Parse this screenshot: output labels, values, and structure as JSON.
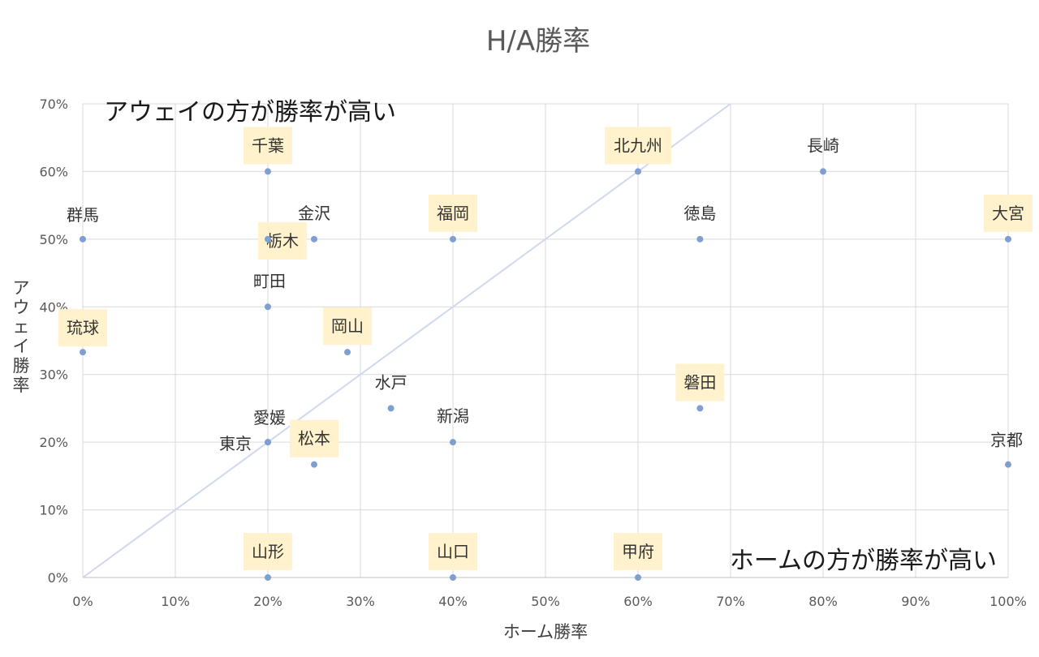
{
  "chart_data": {
    "type": "scatter",
    "title": "H/A勝率",
    "xlabel": "ホーム勝率",
    "ylabel": "アウェイ勝率",
    "xlim": [
      0,
      100
    ],
    "ylim": [
      0,
      70
    ],
    "unit": "%",
    "x_ticks": [
      "0%",
      "10%",
      "20%",
      "30%",
      "40%",
      "50%",
      "60%",
      "70%",
      "80%",
      "90%",
      "100%"
    ],
    "y_ticks": [
      "0%",
      "10%",
      "20%",
      "30%",
      "40%",
      "50%",
      "60%",
      "70%"
    ],
    "grid": true,
    "reference_line": {
      "from": [
        0,
        0
      ],
      "to": [
        70,
        70
      ]
    },
    "annotations": {
      "upper_left": "アウェイの方が勝率が高い",
      "lower_right": "ホームの方が勝率が高い"
    },
    "colors": {
      "marker": "#7f9fd0",
      "highlight": "#fff2cc",
      "grid": "#d9d9d9",
      "reference_line": "#d0d8ee"
    },
    "points": [
      {
        "label": "千葉",
        "x": 20,
        "y": 60,
        "highlight": true
      },
      {
        "label": "北九州",
        "x": 60,
        "y": 60,
        "highlight": true
      },
      {
        "label": "長崎",
        "x": 80,
        "y": 60,
        "highlight": false
      },
      {
        "label": "群馬",
        "x": 0,
        "y": 50,
        "highlight": false
      },
      {
        "label": "金沢",
        "x": 25,
        "y": 50,
        "highlight": false
      },
      {
        "label": "栃木",
        "x": 20,
        "y": 50,
        "highlight": true
      },
      {
        "label": "福岡",
        "x": 40,
        "y": 50,
        "highlight": true
      },
      {
        "label": "徳島",
        "x": 66.7,
        "y": 50,
        "highlight": false
      },
      {
        "label": "大宮",
        "x": 100,
        "y": 50,
        "highlight": true
      },
      {
        "label": "町田",
        "x": 20,
        "y": 40,
        "highlight": false
      },
      {
        "label": "琉球",
        "x": 0,
        "y": 33.3,
        "highlight": true
      },
      {
        "label": "岡山",
        "x": 28.6,
        "y": 33.3,
        "highlight": true
      },
      {
        "label": "水戸",
        "x": 33.3,
        "y": 25,
        "highlight": false
      },
      {
        "label": "磐田",
        "x": 66.7,
        "y": 25,
        "highlight": true
      },
      {
        "label": "愛媛",
        "x": 20,
        "y": 20,
        "highlight": false
      },
      {
        "label": "東京",
        "x": 20,
        "y": 20,
        "highlight": false
      },
      {
        "label": "新潟",
        "x": 40,
        "y": 20,
        "highlight": false
      },
      {
        "label": "松本",
        "x": 25,
        "y": 16.7,
        "highlight": true
      },
      {
        "label": "京都",
        "x": 100,
        "y": 16.7,
        "highlight": false
      },
      {
        "label": "山形",
        "x": 20,
        "y": 0,
        "highlight": true
      },
      {
        "label": "山口",
        "x": 40,
        "y": 0,
        "highlight": true
      },
      {
        "label": "甲府",
        "x": 60,
        "y": 0,
        "highlight": true
      }
    ]
  }
}
